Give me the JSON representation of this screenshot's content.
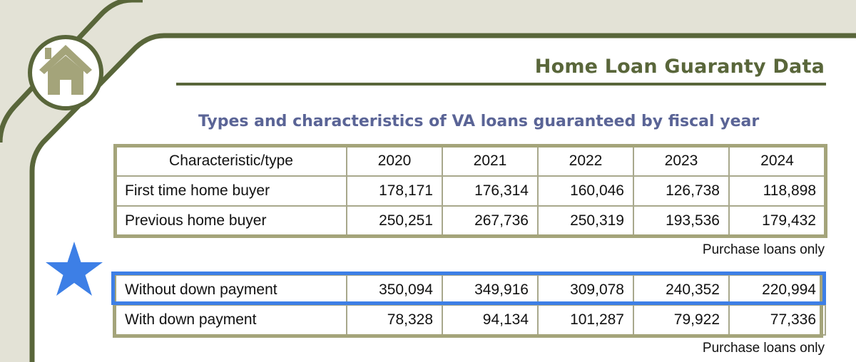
{
  "header": {
    "title": "Home Loan Guaranty Data"
  },
  "subtitle": "Types and characteristics of VA loans guaranteed by fiscal year",
  "table1": {
    "columns": [
      "Characteristic/type",
      "2020",
      "2021",
      "2022",
      "2023",
      "2024"
    ],
    "rows": [
      {
        "label": "First time home buyer",
        "values": [
          "178,171",
          "176,314",
          "160,046",
          "126,738",
          "118,898"
        ]
      },
      {
        "label": "Previous home buyer",
        "values": [
          "250,251",
          "267,736",
          "250,319",
          "193,536",
          "179,432"
        ]
      }
    ],
    "note": "Purchase loans only"
  },
  "table2": {
    "rows": [
      {
        "label": "Without down payment",
        "values": [
          "350,094",
          "349,916",
          "309,078",
          "240,352",
          "220,994"
        ]
      },
      {
        "label": "With down payment",
        "values": [
          "78,328",
          "94,134",
          "101,287",
          "79,922",
          "77,336"
        ]
      }
    ],
    "note": "Purchase loans only"
  },
  "colors": {
    "olive": "#59663a",
    "frame_fill": "#e3e2d6",
    "table_border": "#a4a47a",
    "title_blue": "#5a6496",
    "highlight_blue": "#3d7fe6"
  },
  "icons": [
    "house-icon",
    "star-icon"
  ]
}
